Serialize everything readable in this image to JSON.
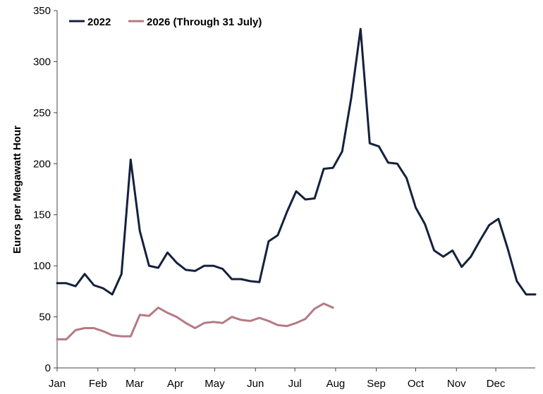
{
  "chart_data": {
    "type": "line",
    "title": "",
    "xlabel": "",
    "ylabel": "Euros per Megawatt Hour",
    "ylim": [
      0,
      350
    ],
    "yticks": [
      0,
      50,
      100,
      150,
      200,
      250,
      300,
      350
    ],
    "xlim": [
      1,
      53
    ],
    "xticks": [
      {
        "label": "Jan",
        "week": 1
      },
      {
        "label": "Feb",
        "week": 5.43
      },
      {
        "label": "Mar",
        "week": 9.43
      },
      {
        "label": "Apr",
        "week": 13.86
      },
      {
        "label": "May",
        "week": 18.14
      },
      {
        "label": "Jun",
        "week": 22.57
      },
      {
        "label": "Jul",
        "week": 26.86
      },
      {
        "label": "Aug",
        "week": 31.29
      },
      {
        "label": "Sep",
        "week": 35.71
      },
      {
        "label": "Oct",
        "week": 40
      },
      {
        "label": "Nov",
        "week": 44.43
      },
      {
        "label": "Dec",
        "week": 48.71
      }
    ],
    "grid": false,
    "legend_position": "top-left",
    "series": [
      {
        "name": "2022",
        "color": "#14213d",
        "x": [
          1,
          2,
          3,
          4,
          5,
          6,
          7,
          8,
          9,
          10,
          11,
          12,
          13,
          14,
          15,
          16,
          17,
          18,
          19,
          20,
          21,
          22,
          23,
          24,
          25,
          26,
          27,
          28,
          29,
          30,
          31,
          32,
          33,
          34,
          35,
          36,
          37,
          38,
          39,
          40,
          41,
          42,
          43,
          44,
          45,
          46,
          47,
          48,
          49,
          50,
          51,
          52,
          53
        ],
        "values": [
          83,
          83,
          80,
          92,
          81,
          78,
          72,
          92,
          204,
          134,
          100,
          98,
          113,
          103,
          96,
          95,
          100,
          100,
          97,
          87,
          87,
          85,
          84,
          124,
          130,
          153,
          173,
          165,
          166,
          195,
          196,
          212,
          265,
          332,
          220,
          217,
          201,
          200,
          186,
          157,
          141,
          115,
          109,
          115,
          99,
          109,
          125,
          140,
          146,
          117,
          85,
          72,
          72
        ]
      },
      {
        "name": "2026 (Through 31 July)",
        "color": "#b57a83",
        "x": [
          1,
          2,
          3,
          4,
          5,
          6,
          7,
          8,
          9,
          10,
          11,
          12,
          13,
          14,
          15,
          16,
          17,
          18,
          19,
          20,
          21,
          22,
          23,
          24,
          25,
          26,
          27,
          28,
          29,
          30,
          31
        ],
        "values": [
          28,
          28,
          37,
          39,
          39,
          36,
          32,
          31,
          31,
          52,
          51,
          59,
          54,
          50,
          44,
          39,
          44,
          45,
          44,
          50,
          47,
          46,
          49,
          46,
          42,
          41,
          44,
          48,
          58,
          63,
          59
        ]
      }
    ]
  }
}
